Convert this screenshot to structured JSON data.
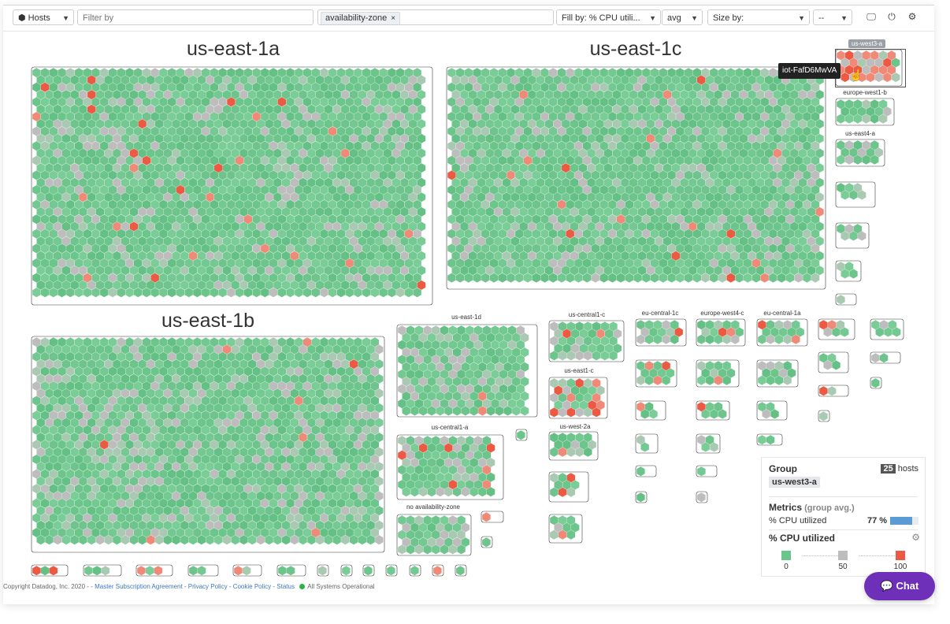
{
  "toolbar": {
    "object_select": "Hosts",
    "filter_placeholder": "Filter by",
    "group_chip": "availability-zone",
    "fill_select": "Fill by: % CPU utili...",
    "agg_select": "avg",
    "size_select": "Size by:",
    "size_agg_select": "--"
  },
  "zones": {
    "us_east_1a": "us-east-1a",
    "us_east_1c": "us-east-1c",
    "us_east_1b": "us-east-1b",
    "us_east_1d": "us-east-1d",
    "us_central1_c": "us-central1-c",
    "us_east1_c": "us-east1-c",
    "us_central1_a": "us-central1-a",
    "us_west_2a": "us-west-2a",
    "no_az": "no availability-zone",
    "eu_central_1c": "eu-central-1c",
    "europe_west4_c": "europe-west4-c",
    "eu_central_1a": "eu-central-1a",
    "us_west3_a": "us-west3-a",
    "europe_west1_b": "europe-west1-b",
    "us_east4_a": "us-east4-a"
  },
  "tooltip": "iot-FafD6MwVA",
  "panel": {
    "group_title": "Group",
    "host_count": "25",
    "hosts_word": "hosts",
    "group_value": "us-west3-a",
    "metrics_title": "Metrics",
    "metrics_sub": "(group avg.)",
    "metric_name": "% CPU utilized",
    "metric_value": "77 %",
    "metric_fraction": 0.77,
    "legend_title": "% CPU utilized",
    "legend_min": "0",
    "legend_mid": "50",
    "legend_max": "100"
  },
  "colors": {
    "green": "#6cc68b",
    "grey": "#bdbdbd",
    "red": "#ec5a43",
    "bar": "#5b9bd5"
  },
  "footer": {
    "copyright": "Copyright Datadog, Inc. 2020 - ",
    "msa": "Master Subscription Agreement",
    "privacy": "Privacy Policy",
    "cookie": "Cookie Policy",
    "status": "Status",
    "operational": "All Systems Operational"
  },
  "chat_label": "Chat"
}
